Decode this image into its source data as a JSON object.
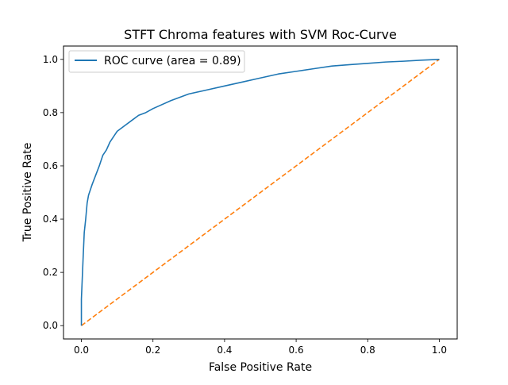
{
  "chart_data": {
    "type": "line",
    "title": "STFT Chroma features with SVM Roc-Curve",
    "xlabel": "False Positive Rate",
    "ylabel": "True Positive Rate",
    "xlim": [
      -0.05,
      1.05
    ],
    "ylim": [
      -0.05,
      1.05
    ],
    "xticks": [
      0.0,
      0.2,
      0.4,
      0.6,
      0.8,
      1.0
    ],
    "xtick_labels": [
      "0.0",
      "0.2",
      "0.4",
      "0.6",
      "0.8",
      "1.0"
    ],
    "yticks": [
      0.0,
      0.2,
      0.4,
      0.6,
      0.8,
      1.0
    ],
    "ytick_labels": [
      "0.0",
      "0.2",
      "0.4",
      "0.6",
      "0.8",
      "1.0"
    ],
    "grid": false,
    "legend_position": "upper-left",
    "series": [
      {
        "name": "ROC curve (area = 0.89)",
        "style": "solid",
        "color": "#1f77b4",
        "x": [
          0.0,
          0.0,
          0.005,
          0.008,
          0.012,
          0.016,
          0.02,
          0.025,
          0.03,
          0.04,
          0.05,
          0.06,
          0.07,
          0.08,
          0.09,
          0.1,
          0.12,
          0.14,
          0.16,
          0.18,
          0.2,
          0.25,
          0.3,
          0.35,
          0.4,
          0.45,
          0.5,
          0.55,
          0.6,
          0.65,
          0.7,
          0.75,
          0.8,
          0.85,
          0.9,
          0.95,
          1.0
        ],
        "y": [
          0.0,
          0.1,
          0.26,
          0.35,
          0.4,
          0.46,
          0.49,
          0.51,
          0.53,
          0.565,
          0.6,
          0.64,
          0.66,
          0.69,
          0.71,
          0.73,
          0.75,
          0.77,
          0.79,
          0.8,
          0.815,
          0.845,
          0.87,
          0.885,
          0.9,
          0.915,
          0.93,
          0.945,
          0.955,
          0.965,
          0.975,
          0.98,
          0.985,
          0.99,
          0.993,
          0.997,
          1.0
        ]
      },
      {
        "style": "dashed",
        "color": "#ff7f0e",
        "x": [
          0.0,
          1.0
        ],
        "y": [
          0.0,
          1.0
        ]
      }
    ]
  }
}
